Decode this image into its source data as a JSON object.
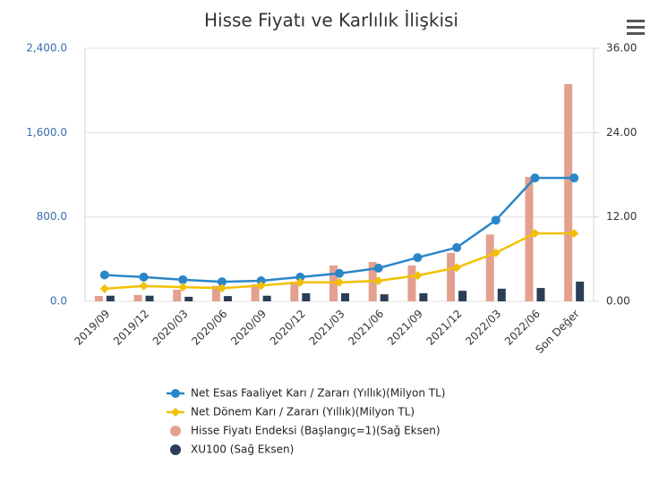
{
  "chart_data": {
    "type": "combo",
    "title": "Hisse Fiyatı ve Karlılık İlişkisi",
    "categories": [
      "2019/09",
      "2019/12",
      "2020/03",
      "2020/06",
      "2020/09",
      "2020/12",
      "2021/03",
      "2021/06",
      "2021/09",
      "2021/12",
      "2022/03",
      "2022/06",
      "Son Değer"
    ],
    "series": [
      {
        "name": "Net Esas Faaliyet Karı / Zararı (Yıllık)(Milyon TL)",
        "type": "line",
        "marker": "circle",
        "color": "#2a86c8",
        "values": [
          250,
          230,
          205,
          185,
          195,
          230,
          265,
          315,
          415,
          510,
          770,
          1170,
          1170
        ]
      },
      {
        "name": "Net Dönem Karı / Zararı (Yıllık)(Milyon TL)",
        "type": "line",
        "marker": "diamond",
        "color": "#f2c000",
        "values": [
          120,
          145,
          135,
          125,
          150,
          180,
          180,
          195,
          245,
          320,
          460,
          645,
          645
        ]
      },
      {
        "name": "Hisse Fiyatı Endeksi (Başlangıç=1)(Sağ Eksen)",
        "type": "bar",
        "axis": "y2",
        "color": "#e3a08f",
        "values": [
          0.76,
          0.9,
          1.65,
          2.2,
          2.4,
          2.8,
          5.1,
          5.6,
          5.1,
          6.9,
          9.5,
          17.7,
          30.9
        ]
      },
      {
        "name": "XU100 (Sağ Eksen)",
        "type": "bar",
        "axis": "y2",
        "color": "#2b3e55",
        "values": [
          0.8,
          0.8,
          0.65,
          0.75,
          0.8,
          1.15,
          1.15,
          1.0,
          1.15,
          1.5,
          1.8,
          1.9,
          2.8
        ]
      }
    ],
    "ylim": [
      0,
      2400
    ],
    "yticks": [
      {
        "value": 0,
        "label": "0.0"
      },
      {
        "value": 800,
        "label": "800.0"
      },
      {
        "value": 1600,
        "label": "1,600.0"
      },
      {
        "value": 2400,
        "label": "2,400.0"
      }
    ],
    "y2lim": [
      0,
      36
    ],
    "y2ticks": [
      {
        "value": 0,
        "label": "0.00"
      },
      {
        "value": 12,
        "label": "12.00"
      },
      {
        "value": 24,
        "label": "24.00"
      },
      {
        "value": 36,
        "label": "36.00"
      }
    ],
    "grid": true
  }
}
